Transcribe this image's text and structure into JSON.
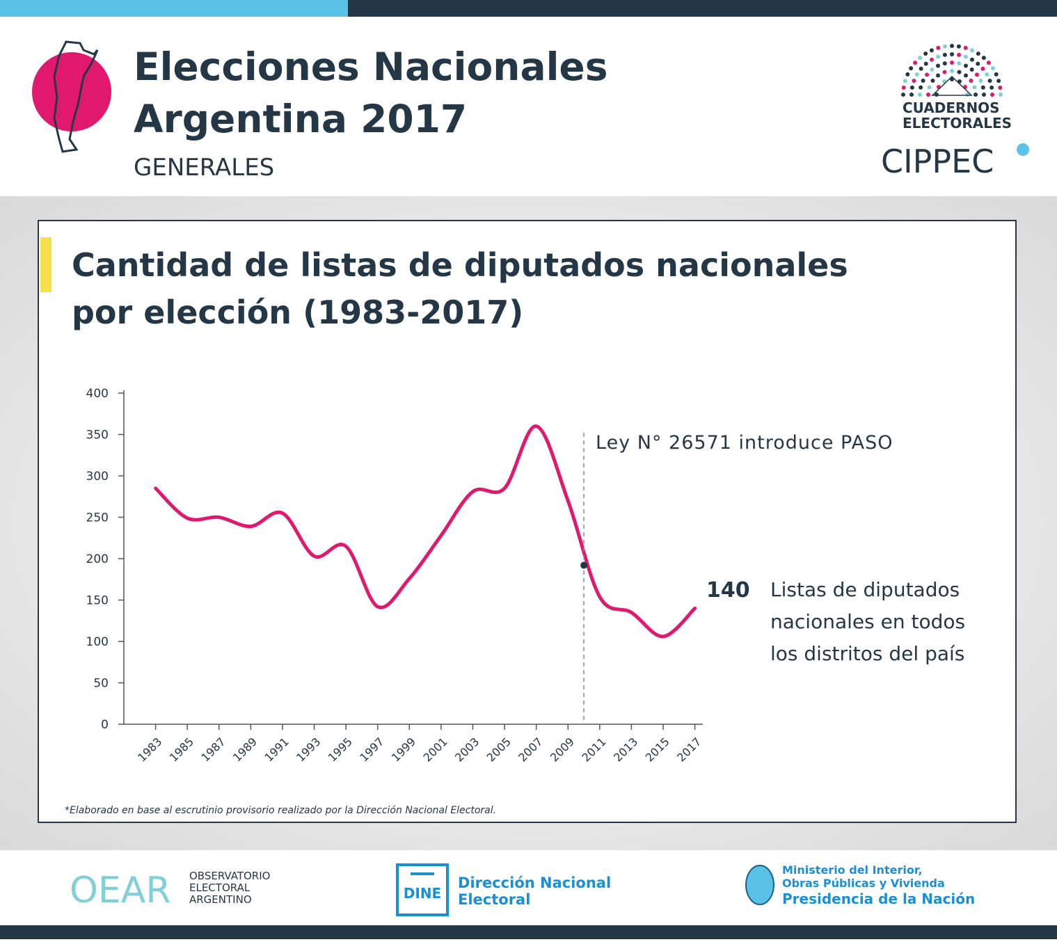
{
  "header": {
    "title_lines": [
      "Elecciones Nacionales",
      "Argentina 2017"
    ],
    "subtitle": "GENERALES",
    "logo_lines": [
      "CUADERNOS",
      "ELECTORALES"
    ],
    "logo_org": "CIPPEC"
  },
  "chart_data": {
    "type": "line",
    "title_lines": [
      "Cantidad de listas de diputados nacionales",
      "por elección (1983-2017)"
    ],
    "x": [
      1983,
      1985,
      1987,
      1989,
      1991,
      1993,
      1995,
      1997,
      1999,
      2001,
      2003,
      2005,
      2007,
      2009,
      2011,
      2013,
      2015,
      2017
    ],
    "series": [
      {
        "color": "#e0196e",
        "values": [
          285,
          249,
          250,
          239,
          255,
          203,
          215,
          142,
          176,
          228,
          281,
          285,
          360,
          270,
          154,
          135,
          106,
          140
        ]
      }
    ],
    "xlim": [
      1981,
      2017.5
    ],
    "xticks": [
      1983,
      1985,
      1987,
      1989,
      1991,
      1993,
      1995,
      1997,
      1999,
      2001,
      2003,
      2005,
      2007,
      2009,
      2011,
      2013,
      2015,
      2017
    ],
    "ylim": [
      0,
      400
    ],
    "yticks": [
      0,
      50,
      100,
      150,
      200,
      250,
      300,
      350,
      400
    ],
    "annotation": {
      "text": "Ley N° 26571 introduce PASO",
      "x": 2010,
      "y": 192
    },
    "callout_lines": [
      "Listas de diputados",
      "nacionales en todos",
      "los distritos del país"
    ],
    "footnote": "*Elaborado en base al escrutinio provisorio realizado por la Dirección Nacional Electoral."
  },
  "footer": {
    "oear": "OEAR",
    "oear_lines": [
      "OBSERVATORIO",
      "ELECTORAL",
      "ARGENTINO"
    ],
    "dine": "DINE",
    "dine_lines": [
      "Dirección Nacional",
      "Electoral"
    ],
    "ministry_lines": [
      "Ministerio del Interior,",
      "Obras Públicas y Vivienda",
      "Presidencia de la Nación"
    ]
  }
}
